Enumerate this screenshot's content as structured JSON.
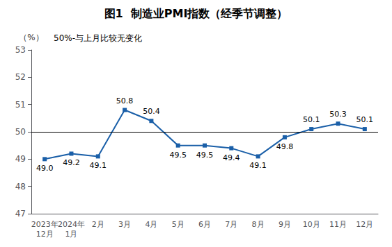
{
  "chart_data": {
    "type": "line",
    "title": "图1  制造业PMI指数（经季节调整）",
    "subtitle": "50%-与上月比较无变化",
    "ylabel": "（%）",
    "categories": [
      "2023年\n12月",
      "2024年\n1月",
      "2月",
      "3月",
      "4月",
      "5月",
      "6月",
      "7月",
      "8月",
      "9月",
      "10月",
      "11月",
      "12月"
    ],
    "values": [
      49.0,
      49.2,
      49.1,
      50.8,
      50.4,
      49.5,
      49.5,
      49.4,
      49.1,
      49.8,
      50.1,
      50.3,
      50.1
    ],
    "value_labels": [
      "49.0",
      "49.2",
      "49.1",
      "50.8",
      "50.4",
      "49.5",
      "49.5",
      "49.4",
      "49.1",
      "49.8",
      "50.1",
      "50.3",
      "50.1"
    ],
    "color": "#1a5fa8",
    "marker": "square",
    "reference_line": 50.0,
    "ylim": [
      47,
      53
    ],
    "yticks": [
      47,
      48,
      49,
      50,
      51,
      52,
      53
    ],
    "data_labels": true,
    "grid": false
  }
}
